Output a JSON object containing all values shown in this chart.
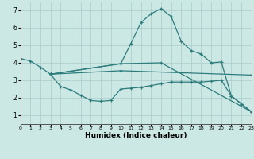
{
  "xlabel": "Humidex (Indice chaleur)",
  "xlim": [
    0,
    23
  ],
  "ylim": [
    0.5,
    7.5
  ],
  "xticks": [
    0,
    1,
    2,
    3,
    4,
    5,
    6,
    7,
    8,
    9,
    10,
    11,
    12,
    13,
    14,
    15,
    16,
    17,
    18,
    19,
    20,
    21,
    22,
    23
  ],
  "yticks": [
    1,
    2,
    3,
    4,
    5,
    6,
    7
  ],
  "bg_color": "#cce8e4",
  "grid_color": "#aacccc",
  "line_color": "#2d7c7c",
  "lines": [
    {
      "x": [
        0,
        1,
        2,
        3,
        10,
        11,
        12,
        13,
        14,
        15,
        16,
        17,
        18,
        19,
        20,
        21,
        22,
        23
      ],
      "y": [
        4.25,
        4.1,
        3.75,
        3.35,
        3.95,
        5.1,
        6.3,
        6.8,
        7.1,
        6.65,
        5.25,
        4.7,
        4.5,
        4.0,
        4.05,
        2.1,
        1.65,
        1.2
      ]
    },
    {
      "x": [
        3,
        4,
        5,
        6,
        7,
        8,
        9,
        10,
        11,
        12,
        13,
        14,
        15,
        16,
        17,
        18,
        19,
        20,
        21,
        22,
        23
      ],
      "y": [
        3.35,
        2.65,
        2.45,
        2.15,
        1.85,
        1.8,
        1.85,
        2.5,
        2.55,
        2.6,
        2.7,
        2.8,
        2.9,
        2.9,
        2.9,
        2.9,
        2.95,
        3.0,
        2.1,
        1.65,
        1.2
      ]
    },
    {
      "x": [
        3,
        10,
        14,
        23
      ],
      "y": [
        3.35,
        3.95,
        4.0,
        1.2
      ]
    },
    {
      "x": [
        3,
        10,
        23
      ],
      "y": [
        3.35,
        3.55,
        3.3
      ]
    }
  ]
}
